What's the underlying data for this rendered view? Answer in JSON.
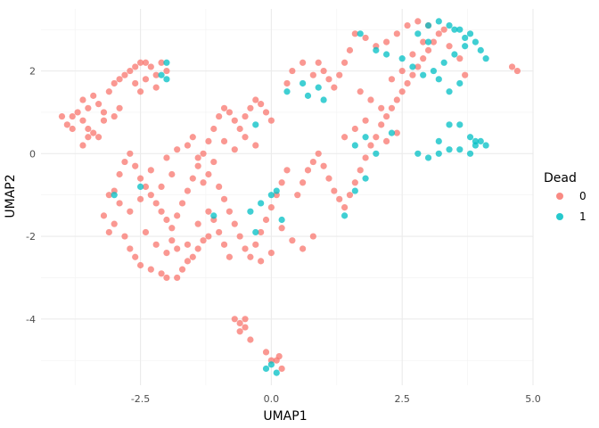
{
  "chart_data": {
    "type": "scatter",
    "xlabel": "UMAP1",
    "ylabel": "UMAP2",
    "xlim": [
      -4.4,
      5.0
    ],
    "ylim": [
      -5.6,
      3.5
    ],
    "x_ticks": [
      -2.5,
      0.0,
      2.5,
      5.0
    ],
    "x_tick_labels": [
      "-2.5",
      "0.0",
      "2.5",
      "5.0"
    ],
    "y_ticks": [
      -4,
      -2,
      0,
      2
    ],
    "y_tick_labels": [
      "-4",
      "-2",
      "0",
      "2"
    ],
    "grid": true,
    "legend": {
      "title": "Dead",
      "position": "right"
    },
    "series": [
      {
        "name": "0",
        "color": "#F8766D",
        "points": [
          [
            -4.0,
            0.9
          ],
          [
            -3.9,
            0.7
          ],
          [
            -3.8,
            0.9
          ],
          [
            -3.7,
            1.0
          ],
          [
            -3.6,
            1.3
          ],
          [
            -3.5,
            1.1
          ],
          [
            -3.4,
            1.4
          ],
          [
            -3.3,
            1.2
          ],
          [
            -3.2,
            1.0
          ],
          [
            -3.6,
            0.8
          ],
          [
            -3.5,
            0.6
          ],
          [
            -3.4,
            0.5
          ],
          [
            -3.8,
            0.6
          ],
          [
            -3.3,
            0.4
          ],
          [
            -3.1,
            1.5
          ],
          [
            -3.0,
            1.7
          ],
          [
            -2.9,
            1.8
          ],
          [
            -2.8,
            1.9
          ],
          [
            -2.7,
            2.0
          ],
          [
            -2.6,
            2.1
          ],
          [
            -2.5,
            2.2
          ],
          [
            -2.4,
            2.2
          ],
          [
            -2.3,
            2.1
          ],
          [
            -2.2,
            1.9
          ],
          [
            -2.1,
            2.2
          ],
          [
            -2.6,
            1.7
          ],
          [
            -2.4,
            1.8
          ],
          [
            -2.0,
            2.0
          ],
          [
            -2.2,
            1.6
          ],
          [
            -2.5,
            1.5
          ],
          [
            -3.2,
            0.8
          ],
          [
            -3.0,
            0.9
          ],
          [
            -2.9,
            1.1
          ],
          [
            -3.6,
            0.2
          ],
          [
            -3.5,
            0.4
          ],
          [
            -3.0,
            -0.9
          ],
          [
            -3.1,
            -1.0
          ],
          [
            -2.9,
            -1.2
          ],
          [
            -3.2,
            -1.5
          ],
          [
            -3.0,
            -1.7
          ],
          [
            -3.1,
            -1.9
          ],
          [
            -2.8,
            -2.0
          ],
          [
            -2.7,
            -2.3
          ],
          [
            -2.6,
            -2.5
          ],
          [
            -2.5,
            -2.7
          ],
          [
            -2.3,
            -2.8
          ],
          [
            -2.1,
            -2.9
          ],
          [
            -2.0,
            -3.0
          ],
          [
            -1.8,
            -3.0
          ],
          [
            -1.7,
            -2.8
          ],
          [
            -1.6,
            -2.6
          ],
          [
            -1.5,
            -2.5
          ],
          [
            -1.4,
            -2.3
          ],
          [
            -1.3,
            -2.1
          ],
          [
            -1.2,
            -2.0
          ],
          [
            -2.9,
            -0.5
          ],
          [
            -2.8,
            -0.2
          ],
          [
            -2.7,
            0.0
          ],
          [
            -2.6,
            -0.3
          ],
          [
            -2.5,
            -0.6
          ],
          [
            -2.4,
            -0.8
          ],
          [
            -2.3,
            -1.0
          ],
          [
            -2.2,
            -1.2
          ],
          [
            -2.1,
            -1.4
          ],
          [
            -2.0,
            -1.6
          ],
          [
            -1.9,
            -1.8
          ],
          [
            -1.8,
            -1.5
          ],
          [
            -1.7,
            -1.2
          ],
          [
            -1.6,
            -0.9
          ],
          [
            -1.5,
            -0.6
          ],
          [
            -1.4,
            -0.3
          ],
          [
            -1.3,
            0.0
          ],
          [
            -1.2,
            0.3
          ],
          [
            -1.1,
            0.6
          ],
          [
            -1.0,
            0.9
          ],
          [
            -0.9,
            1.1
          ],
          [
            -0.8,
            1.0
          ],
          [
            -0.7,
            0.8
          ],
          [
            -0.6,
            0.6
          ],
          [
            -0.5,
            0.9
          ],
          [
            -0.4,
            1.1
          ],
          [
            -0.3,
            1.3
          ],
          [
            -0.2,
            1.2
          ],
          [
            -0.1,
            1.0
          ],
          [
            0.0,
            0.8
          ],
          [
            -1.6,
            0.2
          ],
          [
            -1.5,
            0.4
          ],
          [
            -1.4,
            -0.1
          ],
          [
            -1.2,
            -0.5
          ],
          [
            -1.0,
            -0.8
          ],
          [
            -0.9,
            -1.1
          ],
          [
            -0.8,
            -1.4
          ],
          [
            -0.7,
            -1.7
          ],
          [
            -0.6,
            -2.0
          ],
          [
            -0.5,
            -2.3
          ],
          [
            -0.4,
            -2.5
          ],
          [
            -0.3,
            -2.2
          ],
          [
            -0.2,
            -1.9
          ],
          [
            -0.1,
            -1.6
          ],
          [
            0.0,
            -1.3
          ],
          [
            0.1,
            -1.0
          ],
          [
            0.2,
            -0.7
          ],
          [
            0.3,
            -0.4
          ],
          [
            -2.4,
            -1.9
          ],
          [
            -2.2,
            -2.2
          ],
          [
            -2.0,
            -2.4
          ],
          [
            -1.9,
            -2.1
          ],
          [
            -1.8,
            -2.3
          ],
          [
            -1.6,
            -2.2
          ],
          [
            -1.4,
            -1.7
          ],
          [
            -1.2,
            -1.4
          ],
          [
            -1.1,
            -1.6
          ],
          [
            -1.0,
            -1.9
          ],
          [
            -0.9,
            -2.2
          ],
          [
            -0.8,
            -2.5
          ],
          [
            -0.7,
            -4.0
          ],
          [
            -0.6,
            -4.1
          ],
          [
            -0.5,
            -4.0
          ],
          [
            -0.6,
            -4.3
          ],
          [
            -0.4,
            -4.5
          ],
          [
            -0.5,
            -4.2
          ],
          [
            -0.1,
            -4.8
          ],
          [
            0.0,
            -5.0
          ],
          [
            0.1,
            -5.0
          ],
          [
            0.2,
            -5.2
          ],
          [
            0.15,
            -4.9
          ],
          [
            0.5,
            -1.0
          ],
          [
            0.6,
            -0.7
          ],
          [
            0.7,
            -0.4
          ],
          [
            0.8,
            -0.2
          ],
          [
            0.9,
            0.0
          ],
          [
            1.0,
            -0.3
          ],
          [
            1.1,
            -0.6
          ],
          [
            1.2,
            -0.9
          ],
          [
            1.3,
            -1.1
          ],
          [
            1.4,
            -1.3
          ],
          [
            1.5,
            -1.0
          ],
          [
            1.6,
            -0.7
          ],
          [
            1.7,
            -0.4
          ],
          [
            1.8,
            -0.1
          ],
          [
            1.9,
            0.2
          ],
          [
            2.0,
            0.4
          ],
          [
            2.1,
            0.7
          ],
          [
            2.2,
            0.9
          ],
          [
            2.3,
            1.1
          ],
          [
            2.4,
            1.3
          ],
          [
            2.5,
            1.5
          ],
          [
            2.6,
            1.7
          ],
          [
            2.7,
            1.9
          ],
          [
            2.8,
            2.1
          ],
          [
            2.9,
            2.3
          ],
          [
            3.0,
            2.5
          ],
          [
            3.1,
            2.7
          ],
          [
            3.2,
            2.9
          ],
          [
            3.3,
            3.0
          ],
          [
            3.0,
            3.1
          ],
          [
            2.8,
            3.2
          ],
          [
            2.6,
            3.1
          ],
          [
            2.4,
            2.9
          ],
          [
            2.2,
            2.7
          ],
          [
            2.0,
            2.6
          ],
          [
            1.8,
            2.8
          ],
          [
            1.6,
            2.9
          ],
          [
            1.5,
            2.5
          ],
          [
            1.4,
            2.2
          ],
          [
            1.3,
            1.9
          ],
          [
            1.2,
            1.6
          ],
          [
            1.1,
            1.8
          ],
          [
            1.0,
            2.0
          ],
          [
            0.9,
            2.2
          ],
          [
            0.8,
            1.9
          ],
          [
            0.6,
            2.2
          ],
          [
            0.4,
            2.0
          ],
          [
            0.3,
            1.7
          ],
          [
            1.7,
            1.5
          ],
          [
            1.9,
            1.3
          ],
          [
            2.1,
            1.1
          ],
          [
            2.3,
            1.8
          ],
          [
            2.5,
            2.0
          ],
          [
            2.7,
            2.4
          ],
          [
            2.9,
            2.7
          ],
          [
            1.8,
            0.8
          ],
          [
            1.6,
            0.6
          ],
          [
            1.4,
            0.4
          ],
          [
            2.2,
            0.3
          ],
          [
            2.4,
            0.5
          ],
          [
            0.2,
            -1.8
          ],
          [
            0.4,
            -2.1
          ],
          [
            0.6,
            -2.3
          ],
          [
            0.8,
            -2.0
          ],
          [
            -0.2,
            -2.6
          ],
          [
            0.0,
            -2.4
          ],
          [
            -2.7,
            -1.4
          ],
          [
            -2.5,
            -1.1
          ],
          [
            -2.3,
            -0.4
          ],
          [
            -2.0,
            -0.1
          ],
          [
            -1.8,
            0.1
          ],
          [
            -1.9,
            -0.5
          ],
          [
            -2.1,
            -0.8
          ],
          [
            -1.3,
            -0.7
          ],
          [
            -1.1,
            -0.2
          ],
          [
            -0.9,
            0.3
          ],
          [
            -0.7,
            0.1
          ],
          [
            -0.5,
            0.4
          ],
          [
            -0.3,
            0.2
          ],
          [
            4.6,
            2.1
          ],
          [
            4.7,
            2.0
          ],
          [
            3.4,
            2.6
          ],
          [
            3.6,
            2.3
          ],
          [
            3.7,
            1.9
          ]
        ]
      },
      {
        "name": "1",
        "color": "#00BFC4",
        "points": [
          [
            -2.1,
            1.9
          ],
          [
            -2.0,
            1.8
          ],
          [
            -2.0,
            2.2
          ],
          [
            -2.5,
            -0.8
          ],
          [
            -3.0,
            -1.0
          ],
          [
            -1.1,
            -1.5
          ],
          [
            -0.4,
            -1.4
          ],
          [
            -0.3,
            -1.9
          ],
          [
            -0.2,
            -1.2
          ],
          [
            0.0,
            -1.0
          ],
          [
            0.1,
            -0.9
          ],
          [
            0.2,
            -1.6
          ],
          [
            -0.3,
            0.7
          ],
          [
            -0.1,
            -5.2
          ],
          [
            0.0,
            -5.1
          ],
          [
            0.1,
            -5.3
          ],
          [
            0.6,
            1.7
          ],
          [
            0.7,
            1.4
          ],
          [
            0.9,
            1.6
          ],
          [
            1.0,
            1.3
          ],
          [
            0.3,
            1.5
          ],
          [
            1.4,
            -1.5
          ],
          [
            1.6,
            -0.9
          ],
          [
            1.8,
            -0.6
          ],
          [
            2.0,
            0.0
          ],
          [
            1.6,
            0.2
          ],
          [
            2.3,
            0.5
          ],
          [
            1.8,
            0.4
          ],
          [
            2.8,
            0.0
          ],
          [
            3.0,
            -0.1
          ],
          [
            3.2,
            0.0
          ],
          [
            3.4,
            0.1
          ],
          [
            3.6,
            0.1
          ],
          [
            3.8,
            0.0
          ],
          [
            3.9,
            0.2
          ],
          [
            4.0,
            0.3
          ],
          [
            4.1,
            0.2
          ],
          [
            3.2,
            0.3
          ],
          [
            3.4,
            0.7
          ],
          [
            3.6,
            0.7
          ],
          [
            3.8,
            0.4
          ],
          [
            3.9,
            0.3
          ],
          [
            3.0,
            3.1
          ],
          [
            3.2,
            3.2
          ],
          [
            3.4,
            3.1
          ],
          [
            3.6,
            3.0
          ],
          [
            3.8,
            2.9
          ],
          [
            3.9,
            2.7
          ],
          [
            4.0,
            2.5
          ],
          [
            4.1,
            2.3
          ],
          [
            3.7,
            2.6
          ],
          [
            3.5,
            2.4
          ],
          [
            3.3,
            2.2
          ],
          [
            3.1,
            2.0
          ],
          [
            2.9,
            1.9
          ],
          [
            2.7,
            2.1
          ],
          [
            2.5,
            2.3
          ],
          [
            3.6,
            1.7
          ],
          [
            3.4,
            1.5
          ],
          [
            3.2,
            1.8
          ],
          [
            2.2,
            2.4
          ],
          [
            2.0,
            2.5
          ],
          [
            1.7,
            2.9
          ],
          [
            2.8,
            2.9
          ],
          [
            3.0,
            2.7
          ],
          [
            3.5,
            3.0
          ],
          [
            3.7,
            2.8
          ]
        ]
      }
    ]
  }
}
